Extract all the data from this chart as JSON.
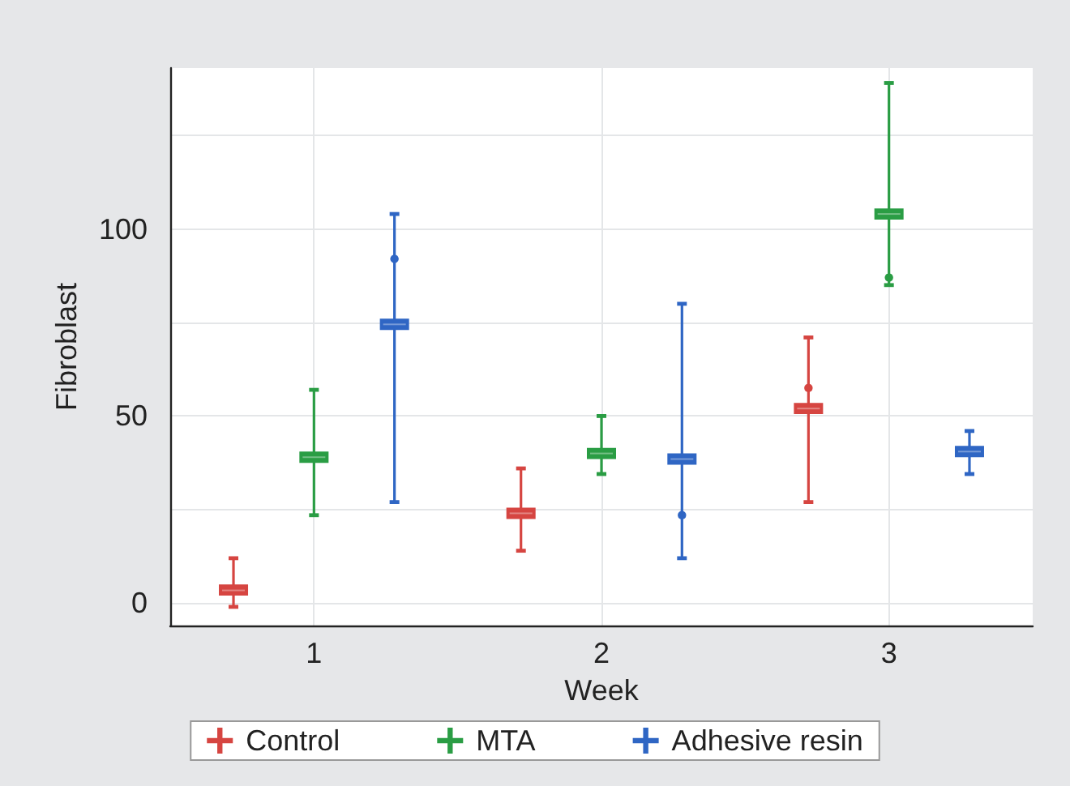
{
  "chart_data": {
    "type": "box",
    "xlabel": "Week",
    "ylabel": "Fibroblast",
    "categories": [
      "1",
      "2",
      "3"
    ],
    "ylim": [
      -6,
      143
    ],
    "yticks": [
      0,
      {
        "value": 25,
        "label": null
      },
      50,
      {
        "value": 75,
        "label": null
      },
      100,
      {
        "value": 125,
        "label": null
      }
    ],
    "grid": true,
    "legend": "bottom",
    "series": [
      {
        "name": "Control",
        "color": "#d64541",
        "boxes": [
          {
            "low": -1,
            "q1": 2,
            "median": 3.4,
            "q3": 5,
            "high": 12
          },
          {
            "low": 14,
            "q1": 22.5,
            "median": 24,
            "q3": 25.5,
            "high": 36
          },
          {
            "low": 27,
            "q1": 50.5,
            "median": 52,
            "q3": 53.5,
            "high": 71,
            "outliers": [
              57.5
            ]
          }
        ]
      },
      {
        "name": "MTA",
        "color": "#2a9d44",
        "boxes": [
          {
            "low": 23.5,
            "q1": 37.5,
            "median": 39,
            "q3": 40.5,
            "high": 57
          },
          {
            "low": 34.5,
            "q1": 38.5,
            "median": 40,
            "q3": 41.5,
            "high": 50
          },
          {
            "low": 85,
            "q1": 102.5,
            "median": 104,
            "q3": 105.5,
            "high": 139,
            "outliers": [
              87
            ]
          }
        ]
      },
      {
        "name": "Adhesive resin",
        "color": "#2f66c4",
        "boxes": [
          {
            "low": 27,
            "q1": 73,
            "median": 74.5,
            "q3": 76,
            "high": 104,
            "outliers": [
              92
            ]
          },
          {
            "low": 12,
            "q1": 37,
            "median": 38.5,
            "q3": 40,
            "high": 80,
            "outliers": [
              23.5
            ]
          },
          {
            "low": 34.5,
            "q1": 39,
            "median": 40.5,
            "q3": 42,
            "high": 46
          }
        ]
      }
    ]
  }
}
